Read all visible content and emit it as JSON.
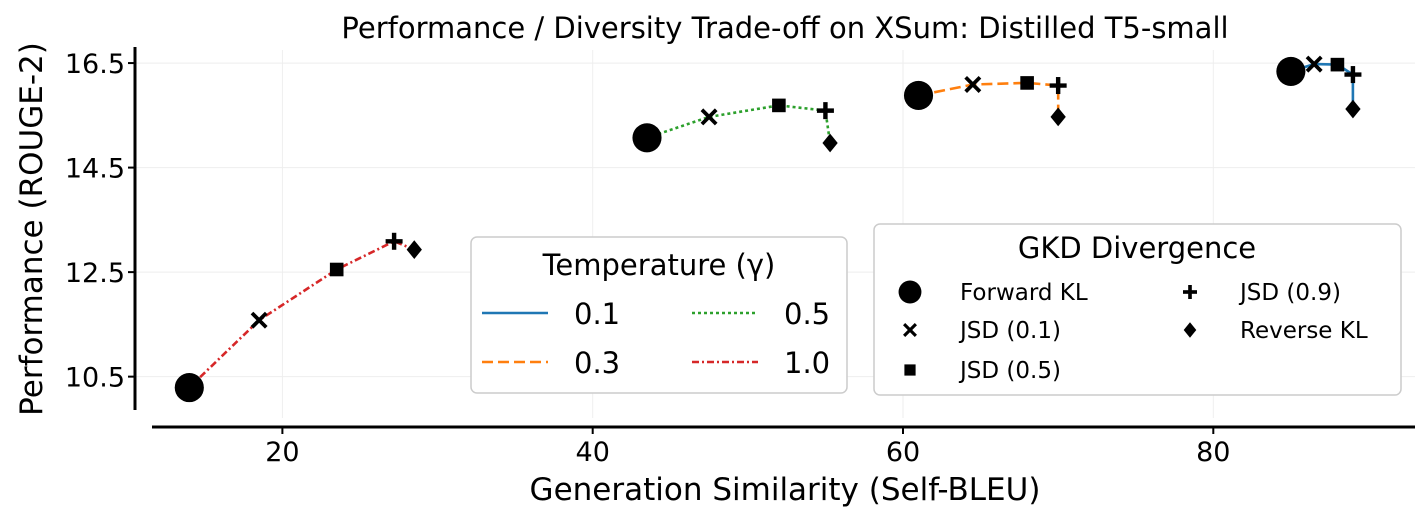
{
  "chart_data": {
    "type": "line",
    "title": "Performance / Diversity Trade-off on XSum: Distilled T5-small",
    "xlabel": "Generation Similarity (Self-BLEU)",
    "ylabel": "Performance (ROUGE-2)",
    "xlim": [
      10.5,
      93
    ],
    "ylim": [
      9.9,
      16.75
    ],
    "x_ticks": [
      "20",
      "40",
      "60",
      "80"
    ],
    "y_ticks": [
      "10.5",
      "12.5",
      "14.5",
      "16.5"
    ],
    "grid": true,
    "series": [
      {
        "name": "0.1",
        "color": "#1f77b4",
        "dash": "solid",
        "points": [
          {
            "divergence": "Forward KL",
            "x": 85.0,
            "y": 16.34
          },
          {
            "divergence": "JSD (0.1)",
            "x": 86.5,
            "y": 16.48
          },
          {
            "divergence": "JSD (0.5)",
            "x": 88.0,
            "y": 16.47
          },
          {
            "divergence": "JSD (0.9)",
            "x": 89.0,
            "y": 16.28
          },
          {
            "divergence": "Reverse KL",
            "x": 89.0,
            "y": 15.62
          }
        ]
      },
      {
        "name": "0.3",
        "color": "#ff7f0e",
        "dash": "dashed",
        "points": [
          {
            "divergence": "Forward KL",
            "x": 61.0,
            "y": 15.88
          },
          {
            "divergence": "JSD (0.1)",
            "x": 64.5,
            "y": 16.09
          },
          {
            "divergence": "JSD (0.5)",
            "x": 68.0,
            "y": 16.12
          },
          {
            "divergence": "JSD (0.9)",
            "x": 70.0,
            "y": 16.07
          },
          {
            "divergence": "Reverse KL",
            "x": 70.0,
            "y": 15.47
          }
        ]
      },
      {
        "name": "0.5",
        "color": "#2ca02c",
        "dash": "dotted",
        "points": [
          {
            "divergence": "Forward KL",
            "x": 43.5,
            "y": 15.07
          },
          {
            "divergence": "JSD (0.1)",
            "x": 47.5,
            "y": 15.47
          },
          {
            "divergence": "JSD (0.5)",
            "x": 52.0,
            "y": 15.69
          },
          {
            "divergence": "JSD (0.9)",
            "x": 55.0,
            "y": 15.59
          },
          {
            "divergence": "Reverse KL",
            "x": 55.3,
            "y": 14.97
          }
        ]
      },
      {
        "name": "1.0",
        "color": "#d62728",
        "dash": "dashdot",
        "points": [
          {
            "divergence": "Forward KL",
            "x": 14.0,
            "y": 10.29
          },
          {
            "divergence": "JSD (0.1)",
            "x": 18.5,
            "y": 11.58
          },
          {
            "divergence": "JSD (0.5)",
            "x": 23.5,
            "y": 12.55
          },
          {
            "divergence": "JSD (0.9)",
            "x": 27.2,
            "y": 13.09
          },
          {
            "divergence": "Reverse KL",
            "x": 28.5,
            "y": 12.93
          }
        ]
      }
    ],
    "legend_temperature": {
      "title": "Temperature (γ)",
      "placement": "lower-center",
      "entries": [
        "0.1",
        "0.5",
        "0.3",
        "1.0"
      ]
    },
    "legend_divergence": {
      "title": "GKD Divergence",
      "placement": "lower-right",
      "entries": [
        {
          "label": "Forward KL",
          "marker": "circle"
        },
        {
          "label": "JSD (0.9)",
          "marker": "plus"
        },
        {
          "label": "JSD (0.1)",
          "marker": "x"
        },
        {
          "label": "Reverse KL",
          "marker": "diamond"
        },
        {
          "label": "JSD (0.5)",
          "marker": "square"
        }
      ]
    }
  }
}
